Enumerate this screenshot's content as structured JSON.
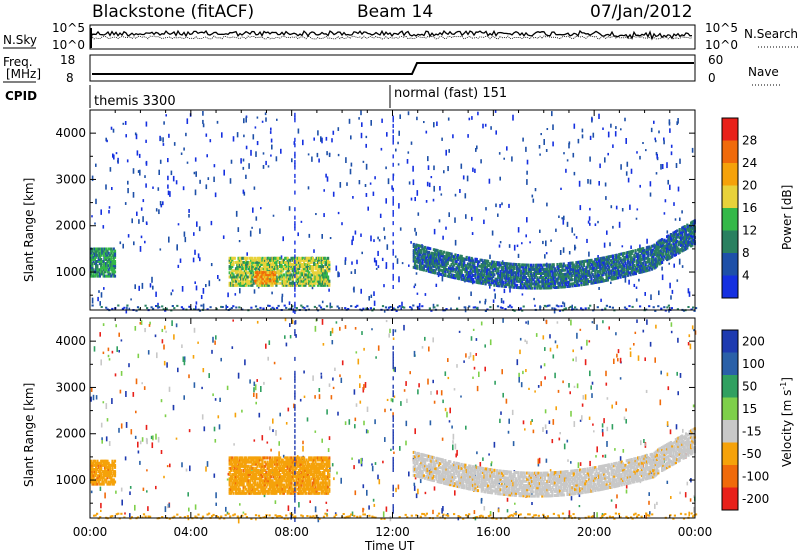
{
  "header": {
    "station": "Blackstone (fitACF)",
    "beam": "Beam 14",
    "date": "07/Jan/2012"
  },
  "sky_panel": {
    "left_label": "N.Sky",
    "right_label": "N.Search",
    "left_ticks": [
      "10^5",
      "10^0"
    ],
    "right_ticks": [
      "10^5",
      "10^0"
    ]
  },
  "freq_panel": {
    "left_label_line1": "Freq.",
    "left_label_line2": "[MHz]",
    "right_label": "Nave",
    "left_ticks": [
      "18",
      "8"
    ],
    "right_ticks": [
      "60",
      "0"
    ]
  },
  "cpid": {
    "label": "CPID",
    "segments": [
      {
        "start_hour": 0,
        "text": "themis 3300"
      },
      {
        "start_hour": 12.0,
        "text": "normal (fast) 151"
      }
    ]
  },
  "power_panel": {
    "ylabel": "Slant Range [km]",
    "yticks": [
      1000,
      2000,
      3000,
      4000
    ],
    "colorbar_label": "Power [dB]",
    "colorbar_ticks": [
      "4",
      "8",
      "12",
      "16",
      "20",
      "24",
      "28"
    ],
    "colors": [
      "#1530e0",
      "#1e50a8",
      "#2a8060",
      "#34b848",
      "#e8d23a",
      "#f5a20a",
      "#f06a0a",
      "#e8201a"
    ]
  },
  "velocity_panel": {
    "ylabel": "Slant Range [km]",
    "yticks": [
      1000,
      2000,
      3000,
      4000
    ],
    "colorbar_label": "Velocity [m s",
    "colorbar_label_sup": "-1",
    "colorbar_label_end": "]",
    "colorbar_ticks": [
      "200",
      "100",
      "50",
      "15",
      "-15",
      "-50",
      "-100",
      "-200"
    ],
    "colors": [
      "#1e3ab0",
      "#2a60a8",
      "#30a060",
      "#7ed04a",
      "#c8c8c8",
      "#f5a20a",
      "#f06a0a",
      "#e8201a"
    ]
  },
  "xaxis": {
    "label": "Time UT",
    "ticks": [
      "00:00",
      "04:00",
      "08:00",
      "12:00",
      "16:00",
      "20:00",
      "00:00"
    ]
  },
  "chart_data": {
    "type": "heatmap",
    "x_range_hours": [
      0,
      24
    ],
    "y_range_km": [
      180,
      4500
    ],
    "power_echo_regions": [
      {
        "hours": [
          0.0,
          1.0
        ],
        "range_km": [
          900,
          1500
        ],
        "power_db": 16
      },
      {
        "hours": [
          5.5,
          9.5
        ],
        "range_km": [
          700,
          1300
        ],
        "power_db": 20
      },
      {
        "hours": [
          6.5,
          7.3
        ],
        "range_km": [
          750,
          1000
        ],
        "power_db": 28
      },
      {
        "hours": [
          12.8,
          24.0
        ],
        "range_km": [
          900,
          2100
        ],
        "power_db": 12
      }
    ],
    "velocity_echo_regions": [
      {
        "hours": [
          0.0,
          1.0
        ],
        "range_km": [
          900,
          1400
        ],
        "velocity": -50
      },
      {
        "hours": [
          5.5,
          9.5
        ],
        "range_km": [
          700,
          1500
        ],
        "velocity": -50
      },
      {
        "hours": [
          12.8,
          24.0
        ],
        "range_km": [
          900,
          2100
        ],
        "velocity": 0
      }
    ]
  }
}
